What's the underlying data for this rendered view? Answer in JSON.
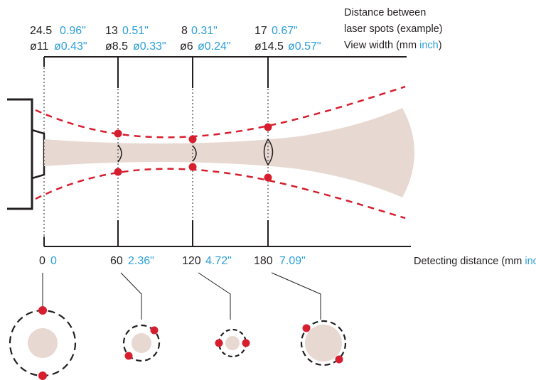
{
  "colors": {
    "beam": "#e7d8d1",
    "laser": "#d71e2e",
    "blue": "#2b9fd9",
    "ink": "#231f20"
  },
  "legend": {
    "spots_label_line1": "Distance between",
    "spots_label_line2": "laser spots (example)",
    "width_label": "View width (mm",
    "width_label_unit_blue": "inch",
    "width_label_close": ")",
    "distance_label": "Detecting distance (mm",
    "distance_label_unit_blue": "inch",
    "distance_label_close": ")"
  },
  "stations": [
    {
      "distance_mm": "0",
      "distance_in": "0",
      "spot_mm": "24.5",
      "spot_in": "0.96\"",
      "width_mm": "ø11",
      "width_in": "ø0.43\"",
      "spot_separation_mm": 24.5,
      "view_width_mm": 11
    },
    {
      "distance_mm": "60",
      "distance_in": "2.36\"",
      "spot_mm": "13",
      "spot_in": "0.51\"",
      "width_mm": "ø8.5",
      "width_in": "ø0.33\"",
      "spot_separation_mm": 13,
      "view_width_mm": 8.5
    },
    {
      "distance_mm": "120",
      "distance_in": "4.72\"",
      "spot_mm": "8",
      "spot_in": "0.31\"",
      "width_mm": "ø6",
      "width_in": "ø0.24\"",
      "spot_separation_mm": 8,
      "view_width_mm": 6
    },
    {
      "distance_mm": "180",
      "distance_in": "7.09\"",
      "spot_mm": "17",
      "spot_in": "0.67\"",
      "width_mm": "ø14.5",
      "width_in": "ø0.57\"",
      "spot_separation_mm": 17,
      "view_width_mm": 14.5
    }
  ]
}
